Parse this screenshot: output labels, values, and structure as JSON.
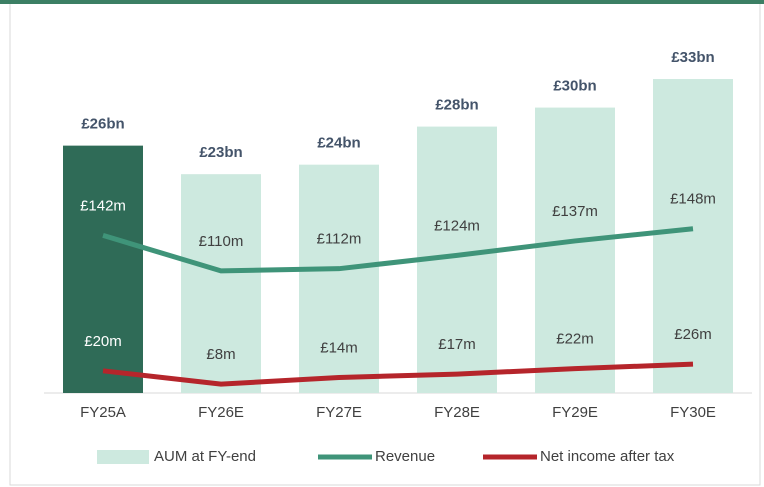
{
  "chart_data": {
    "type": "bar-line",
    "categories": [
      "FY25A",
      "FY26E",
      "FY27E",
      "FY28E",
      "FY29E",
      "FY30E"
    ],
    "series": [
      {
        "name": "AUM at FY-end",
        "type": "bar",
        "color": "#cde9df",
        "colors": [
          "#2f6b57",
          "#cde9df",
          "#cde9df",
          "#cde9df",
          "#cde9df",
          "#cde9df"
        ],
        "values": [
          26,
          23,
          24,
          28,
          30,
          33
        ],
        "value_labels": [
          "£26bn",
          "£23bn",
          "£24bn",
          "£28bn",
          "£30bn",
          "£33bn"
        ]
      },
      {
        "name": "Revenue",
        "type": "line",
        "axis": "y2",
        "color": "#3f9479",
        "values": [
          142,
          110,
          112,
          124,
          137,
          148
        ],
        "value_labels": [
          "£142m",
          "£110m",
          "£112m",
          "£124m",
          "£137m",
          "£148m"
        ]
      },
      {
        "name": "Net income after tax",
        "type": "line",
        "axis": "y2",
        "color": "#b5252b",
        "values": [
          20,
          8,
          14,
          17,
          22,
          26
        ],
        "value_labels": [
          "£20m",
          "£8m",
          "£14m",
          "£17m",
          "£22m",
          "£26m"
        ]
      }
    ],
    "ylim": [
      0,
      35
    ],
    "y2lim": [
      0,
      300
    ],
    "legend": "bottom"
  }
}
